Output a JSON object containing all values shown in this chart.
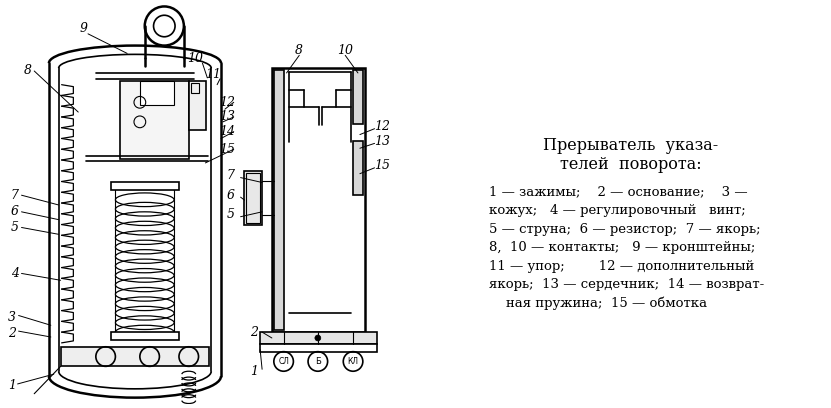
{
  "bg_color": "#ffffff",
  "text_color": "#000000",
  "title_line1": "Прерыватель  указа-",
  "title_line2": "телей  поворота:",
  "legend_lines": [
    "1 — зажимы;    2 — основание;    3 —",
    "кожух;   4 — регулировочный   винт;",
    "5 — струна;  6 — резистор;  7 — якорь;",
    "8,  10 — контакты;   9 — кронштейны;",
    "11 — упор;        12 — дополнительный",
    "якорь;  13 — сердечник;  14 — возврат-",
    "    ная пружина;  15 — обмотка"
  ],
  "title_fontsize": 11.5,
  "legend_fontsize": 9.5,
  "lc": "#000000",
  "lw_main": 1.8,
  "lw_med": 1.2,
  "lw_thin": 0.8
}
